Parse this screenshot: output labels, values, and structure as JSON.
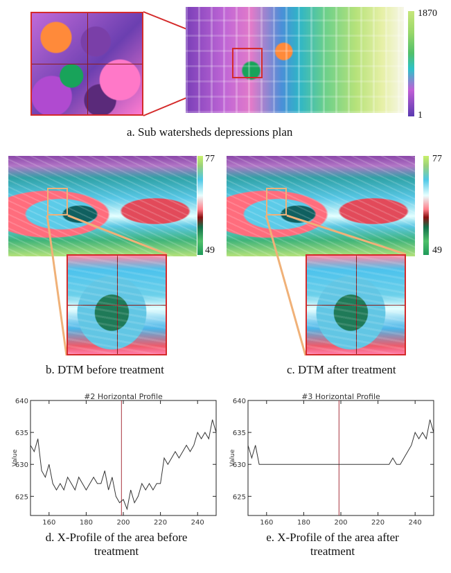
{
  "panel_a": {
    "caption": "a. Sub watersheds depressions plan",
    "colorbar_max": "1870",
    "colorbar_min": "1"
  },
  "panel_b": {
    "caption": "b. DTM before treatment",
    "colorbar_max": "77",
    "colorbar_min": "49"
  },
  "panel_c": {
    "caption": "c. DTM after treatment",
    "colorbar_max": "77",
    "colorbar_min": "49"
  },
  "chart_data": [
    {
      "type": "line",
      "title": "#2 Horizontal Profile",
      "xlabel": "",
      "ylabel": "Value",
      "xlim": [
        150,
        250
      ],
      "ylim": [
        622,
        640
      ],
      "x_ticks": [
        160,
        180,
        200,
        220,
        240
      ],
      "y_ticks": [
        625,
        630,
        635,
        640
      ],
      "marker_x": 199,
      "grid": false,
      "series": [
        {
          "x": [
            150,
            152,
            154,
            156,
            158,
            160,
            162,
            164,
            166,
            168,
            170,
            172,
            174,
            176,
            178,
            180,
            182,
            184,
            186,
            188,
            190,
            192,
            194,
            196,
            198,
            200,
            202,
            204,
            206,
            208,
            210,
            212,
            214,
            216,
            218,
            220,
            222,
            224,
            226,
            228,
            230,
            232,
            234,
            236,
            238,
            240,
            242,
            244,
            246,
            248,
            250
          ],
          "values": [
            633,
            632,
            634,
            629,
            628,
            630,
            627,
            626,
            627,
            626,
            628,
            627,
            626,
            628,
            627,
            626,
            627,
            628,
            627,
            627,
            629,
            626,
            628,
            625,
            624,
            624.5,
            623,
            626,
            624,
            625,
            627,
            626,
            627,
            626,
            627,
            627,
            631,
            630,
            631,
            632,
            631,
            632,
            633,
            632,
            633,
            635,
            634,
            635,
            634,
            637,
            635
          ]
        }
      ]
    },
    {
      "type": "line",
      "title": "#3 Horizontal Profile",
      "xlabel": "",
      "ylabel": "Value",
      "xlim": [
        150,
        250
      ],
      "ylim": [
        622,
        640
      ],
      "x_ticks": [
        160,
        180,
        200,
        220,
        240
      ],
      "y_ticks": [
        625,
        630,
        635,
        640
      ],
      "marker_x": 199,
      "grid": false,
      "series": [
        {
          "x": [
            150,
            152,
            154,
            156,
            158,
            160,
            170,
            180,
            190,
            200,
            210,
            220,
            226,
            228,
            230,
            232,
            234,
            236,
            238,
            240,
            242,
            244,
            246,
            248,
            250
          ],
          "values": [
            633,
            631,
            633,
            630,
            630,
            630,
            630,
            630,
            630,
            630,
            630,
            630,
            630,
            631,
            630,
            630,
            631,
            632,
            633,
            635,
            634,
            635,
            634,
            637,
            635
          ]
        }
      ]
    }
  ],
  "captions_bottom": {
    "d_line1": "d. X-Profile of the area before",
    "d_line2": "treatment",
    "e_line1": "e. X-Profile of the area after",
    "e_line2": "treatment"
  }
}
